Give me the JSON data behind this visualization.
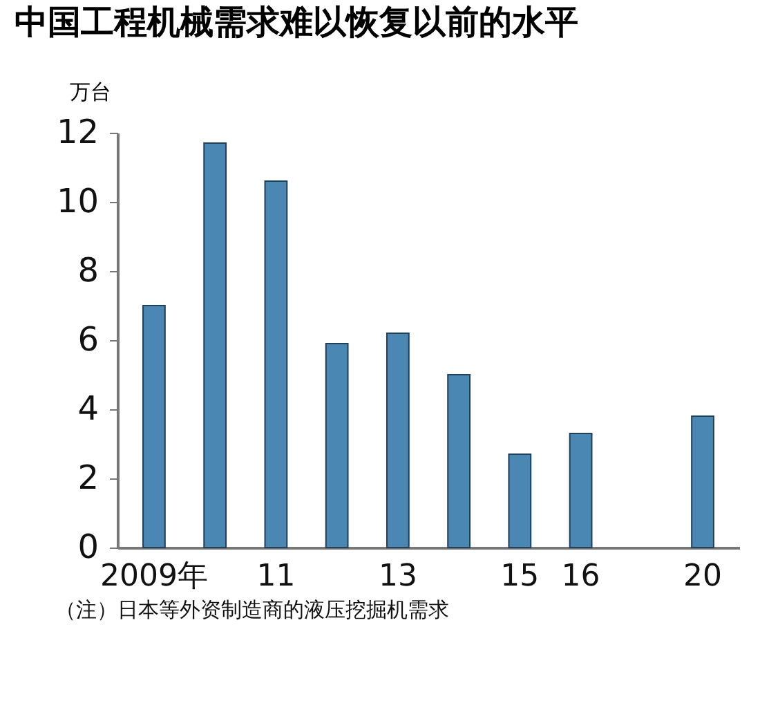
{
  "chart_data": {
    "type": "bar",
    "title": "中国工程机械需求难以恢复以前的水平",
    "ylabel": "万台",
    "categories": [
      "2009年",
      null,
      "11",
      null,
      "13",
      null,
      "15",
      "16",
      null,
      "20"
    ],
    "values": [
      7.0,
      11.7,
      10.6,
      5.9,
      6.2,
      5.0,
      2.7,
      3.3,
      null,
      3.8
    ],
    "color": "#4a87b3",
    "ylim": [
      0,
      12
    ],
    "yticks": [
      0,
      2,
      4,
      6,
      8,
      10,
      12
    ],
    "grid": false,
    "annotations": [
      "（注）日本等外资制造商的液压挖掘机需求"
    ]
  }
}
